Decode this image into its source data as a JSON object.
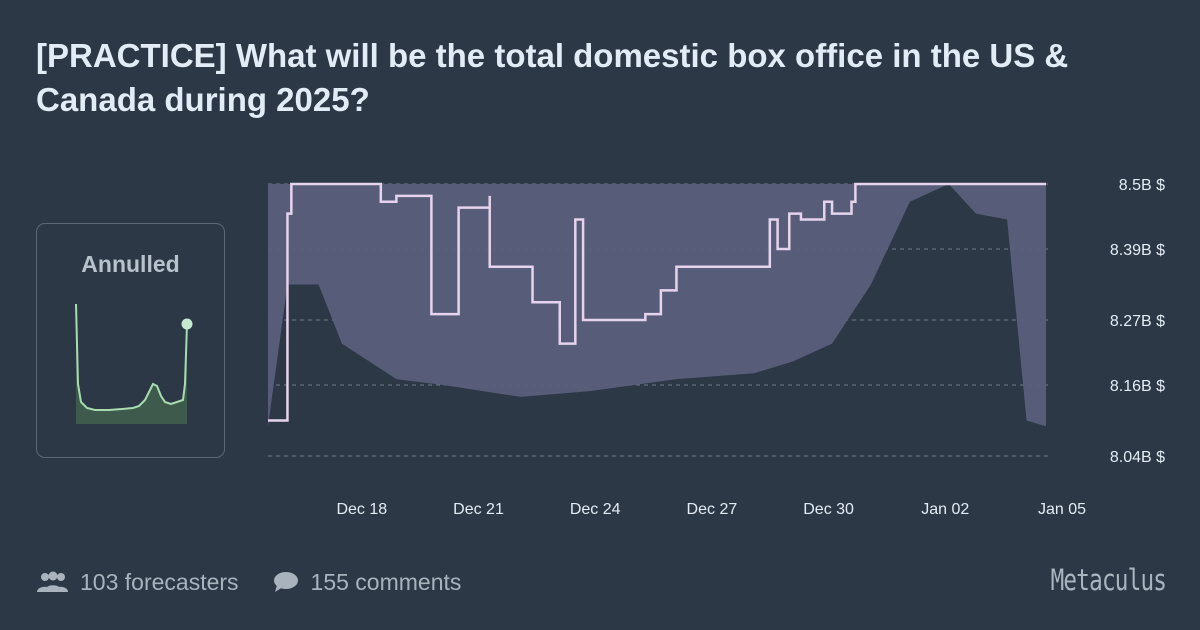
{
  "title": "[PRACTICE] What will be the total domestic box office in the US & Canada during 2025?",
  "status": {
    "label": "Annulled"
  },
  "footer": {
    "forecasters": "103 forecasters",
    "comments": "155 comments",
    "brand": "Metaculus"
  },
  "colors": {
    "background": "#2c3846",
    "band": "#5a5f7c",
    "line": "#e6d4ee",
    "spark_line": "#a8dcae",
    "spark_fill": "#3e5a4c"
  },
  "chart_data": {
    "type": "line",
    "title": "",
    "y_unit": "$",
    "ylim": [
      8.04,
      8.5
    ],
    "y_ticks": [
      {
        "value": 8.5,
        "label": "8.5B $"
      },
      {
        "value": 8.39,
        "label": "8.39B $"
      },
      {
        "value": 8.27,
        "label": "8.27B $"
      },
      {
        "value": 8.16,
        "label": "8.16B $"
      },
      {
        "value": 8.04,
        "label": "8.04B $"
      }
    ],
    "x_range": [
      "2024-12-16",
      "2025-01-05"
    ],
    "x_ticks": [
      {
        "date": "2024-12-18",
        "label": "Dec 18"
      },
      {
        "date": "2024-12-21",
        "label": "Dec 21"
      },
      {
        "date": "2024-12-24",
        "label": "Dec 24"
      },
      {
        "date": "2024-12-27",
        "label": "Dec 27"
      },
      {
        "date": "2024-12-30",
        "label": "Dec 30"
      },
      {
        "date": "2025-01-02",
        "label": "Jan 02"
      },
      {
        "date": "2025-01-05",
        "label": "Jan 05"
      }
    ],
    "grid": true,
    "series": [
      {
        "role": "median",
        "points": [
          [
            "2024-12-16",
            8.1
          ],
          [
            "2024-12-16.5",
            8.1
          ],
          [
            "2024-12-16.5",
            8.45
          ],
          [
            "2024-12-16.6",
            8.45
          ],
          [
            "2024-12-16.6",
            8.5
          ],
          [
            "2024-12-18.9",
            8.5
          ],
          [
            "2024-12-18.9",
            8.47
          ],
          [
            "2024-12-19.3",
            8.47
          ],
          [
            "2024-12-19.3",
            8.48
          ],
          [
            "2024-12-20.2",
            8.48
          ],
          [
            "2024-12-20.2",
            8.28
          ],
          [
            "2024-12-20.9",
            8.28
          ],
          [
            "2024-12-20.9",
            8.46
          ],
          [
            "2024-12-21.7",
            8.46
          ],
          [
            "2024-12-21.7",
            8.48
          ],
          [
            "2024-12-21.7",
            8.36
          ],
          [
            "2024-12-22.8",
            8.36
          ],
          [
            "2024-12-22.8",
            8.3
          ],
          [
            "2024-12-23.5",
            8.3
          ],
          [
            "2024-12-23.5",
            8.23
          ],
          [
            "2024-12-23.9",
            8.23
          ],
          [
            "2024-12-23.9",
            8.44
          ],
          [
            "2024-12-24.1",
            8.44
          ],
          [
            "2024-12-24.1",
            8.27
          ],
          [
            "2024-12-25.7",
            8.27
          ],
          [
            "2024-12-25.7",
            8.28
          ],
          [
            "2024-12-26.1",
            8.28
          ],
          [
            "2024-12-26.1",
            8.32
          ],
          [
            "2024-12-26.5",
            8.32
          ],
          [
            "2024-12-26.5",
            8.36
          ],
          [
            "2024-12-28.9",
            8.36
          ],
          [
            "2024-12-28.9",
            8.44
          ],
          [
            "2024-12-29.1",
            8.44
          ],
          [
            "2024-12-29.1",
            8.39
          ],
          [
            "2024-12-29.4",
            8.39
          ],
          [
            "2024-12-29.4",
            8.45
          ],
          [
            "2024-12-29.7",
            8.45
          ],
          [
            "2024-12-29.7",
            8.44
          ],
          [
            "2024-12-30.3",
            8.44
          ],
          [
            "2024-12-30.3",
            8.47
          ],
          [
            "2024-12-30.5",
            8.47
          ],
          [
            "2024-12-30.5",
            8.45
          ],
          [
            "2024-12-31.0",
            8.45
          ],
          [
            "2024-12-31.0",
            8.47
          ],
          [
            "2024-12-31.1",
            8.47
          ],
          [
            "2024-12-31.1",
            8.5
          ],
          [
            "2025-01-05",
            8.5
          ]
        ]
      }
    ],
    "band": {
      "role": "confidence interval",
      "upper": 8.5,
      "lower": [
        [
          "2024-12-16",
          8.09
        ],
        [
          "2024-12-16.5",
          8.33
        ],
        [
          "2024-12-17.3",
          8.33
        ],
        [
          "2024-12-17.9",
          8.23
        ],
        [
          "2024-12-19.3",
          8.17
        ],
        [
          "2024-12-20.5",
          8.16
        ],
        [
          "2024-12-22.5",
          8.14
        ],
        [
          "2024-12-24.3",
          8.15
        ],
        [
          "2024-12-26.5",
          8.17
        ],
        [
          "2024-12-28.5",
          8.18
        ],
        [
          "2024-12-29.5",
          8.2
        ],
        [
          "2024-12-30.5",
          8.23
        ],
        [
          "2024-12-31.5",
          8.33
        ],
        [
          "2025-01-01.5",
          8.47
        ],
        [
          "2025-01-02.5",
          8.5
        ],
        [
          "2025-01-03.2",
          8.45
        ],
        [
          "2025-01-04.0",
          8.44
        ],
        [
          "2025-01-04.5",
          8.1
        ],
        [
          "2025-01-05",
          8.09
        ]
      ]
    },
    "line_at_end": 8.5
  }
}
